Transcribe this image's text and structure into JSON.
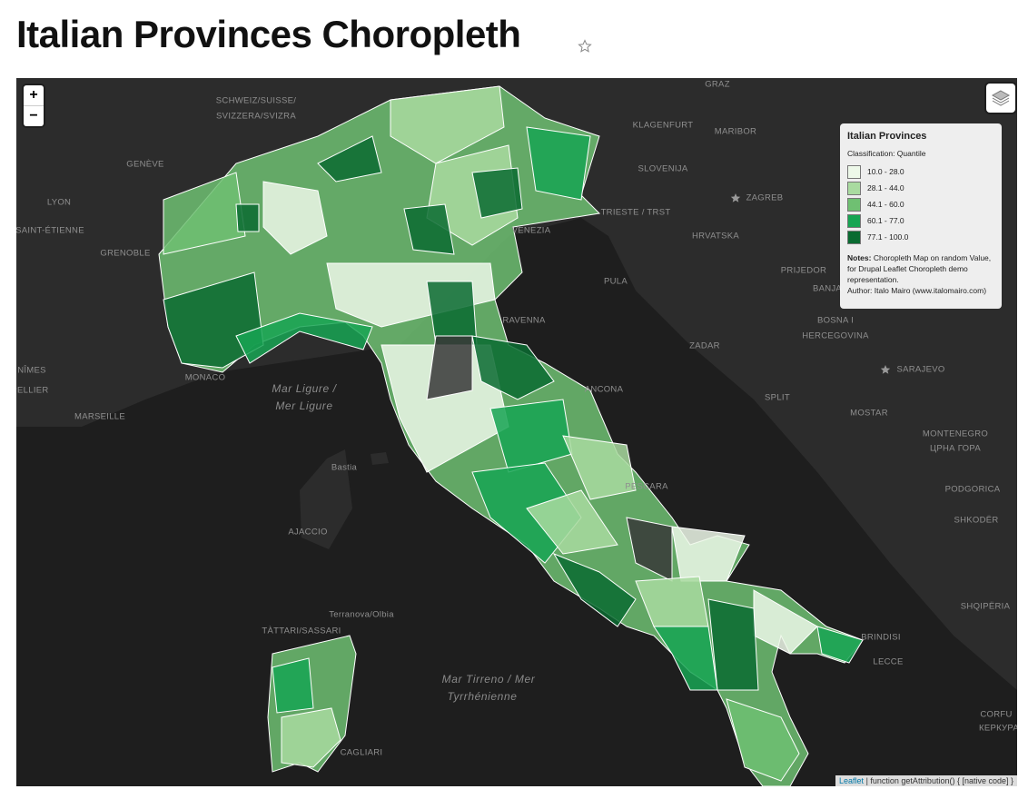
{
  "header": {
    "title": "Italian Provinces Choropleth"
  },
  "map": {
    "zoom_in": "+",
    "zoom_out": "−",
    "labels": [
      "GRAZ",
      "SCHWEIZ/SUISSE/",
      "SVIZZERA/SVIZRA",
      "KLAGENFURT",
      "MARIBOR",
      "GENÈVE",
      "SLOVENIJA",
      "LYON",
      "ZAGREB",
      "TRIESTE / TRST",
      "SAINT-ÉTIENNE",
      "VENEZIA",
      "HRVATSKA",
      "GRENOBLE",
      "PULA",
      "PRIJEDOR",
      "BANJA",
      "BOSNA I",
      "HERCEGOVINA",
      "RAVENNA",
      "ZADAR",
      "MONACO",
      "NÎMES",
      "PELLIER",
      "SARAJEVO",
      "SPLIT",
      "ANCONA",
      "MARSEILLE",
      "MOSTAR",
      "MONTENEGRO",
      "ЦРНА ГОРА",
      "Bastia",
      "PESCARA",
      "PODGORICA",
      "AJACCIO",
      "SHKODËR",
      "SHQIPËRIA",
      "Terranova/Olbia",
      "TÀTTARI/SASSARI",
      "BRINDISI",
      "LECCE",
      "CORFU",
      "КЕРКУРА",
      "CAGLIARI"
    ],
    "sea_labels": [
      "Mar Ligure /",
      "Mer Ligure",
      "Mar Tirreno / Mer",
      "Tyrrhénienne"
    ]
  },
  "legend": {
    "title": "Italian Provinces",
    "classification": "Classification: Quantile",
    "items": [
      {
        "label": "10.0 - 28.0",
        "color": "#edf8e9"
      },
      {
        "label": "28.1 - 44.0",
        "color": "#a9dba0"
      },
      {
        "label": "44.1 - 60.0",
        "color": "#6fc072"
      },
      {
        "label": "60.1 - 77.0",
        "color": "#17a553"
      },
      {
        "label": "77.1 - 100.0",
        "color": "#0a6b31"
      }
    ],
    "notes_label": "Notes:",
    "notes": "Choropleth Map on random Value, for Drupal Leaflet Choropleth demo representation.",
    "author": "Author: Italo Mairo (www.italomairo.com)"
  },
  "attribution": {
    "link": "Leaflet",
    "text": "| function getAttribution() { [native code] }"
  }
}
